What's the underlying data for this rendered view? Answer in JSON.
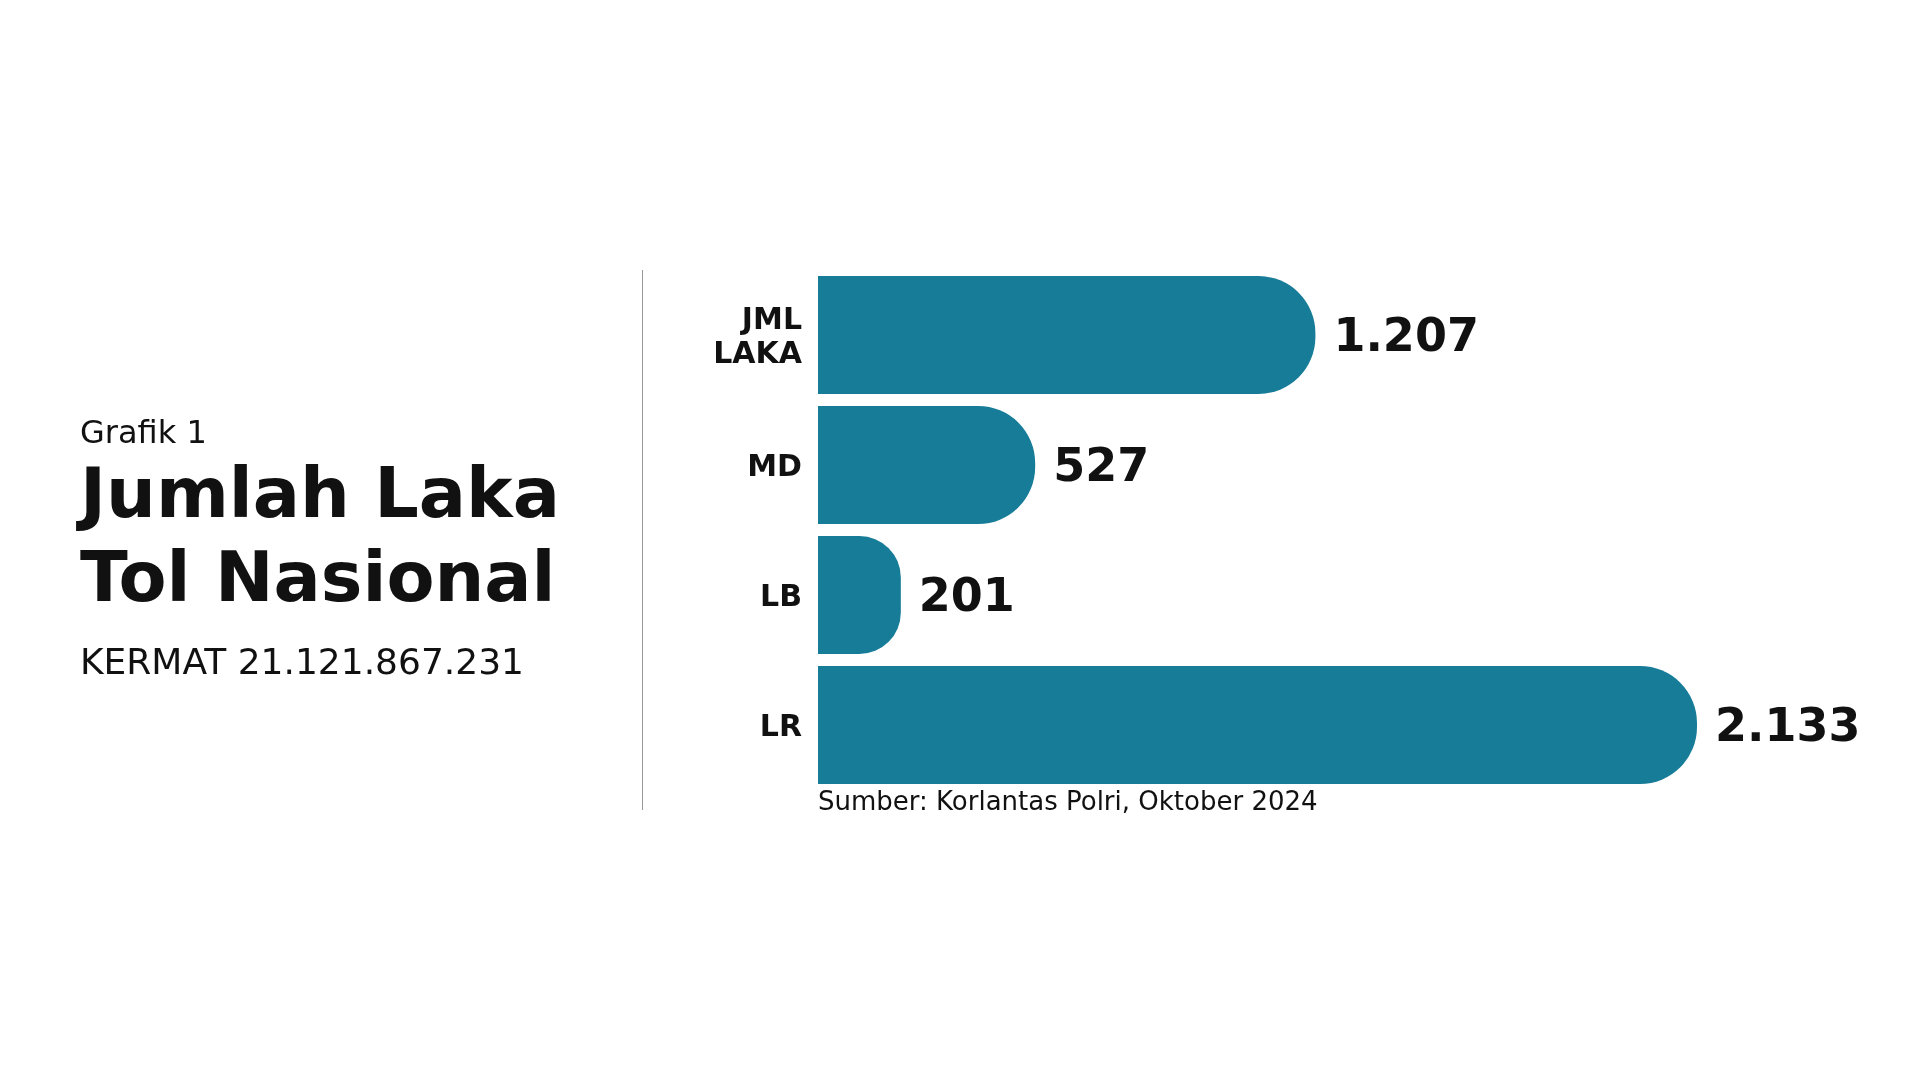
{
  "chart_data": {
    "type": "bar",
    "orientation": "horizontal",
    "title": "Jumlah Laka Tol Nasional",
    "subtitle": "KERMAT 21.121.867.231",
    "annotations": [
      "Grafik 1",
      "Sumber: Korlantas Polri, Oktober 2024"
    ],
    "categories": [
      "JML LAKA",
      "MD",
      "LB",
      "LR"
    ],
    "values": [
      1207,
      527,
      201,
      2133
    ],
    "value_labels": [
      "1.207",
      "527",
      "201",
      "2.133"
    ],
    "color": "#177c98",
    "tick_labels": "y"
  }
}
